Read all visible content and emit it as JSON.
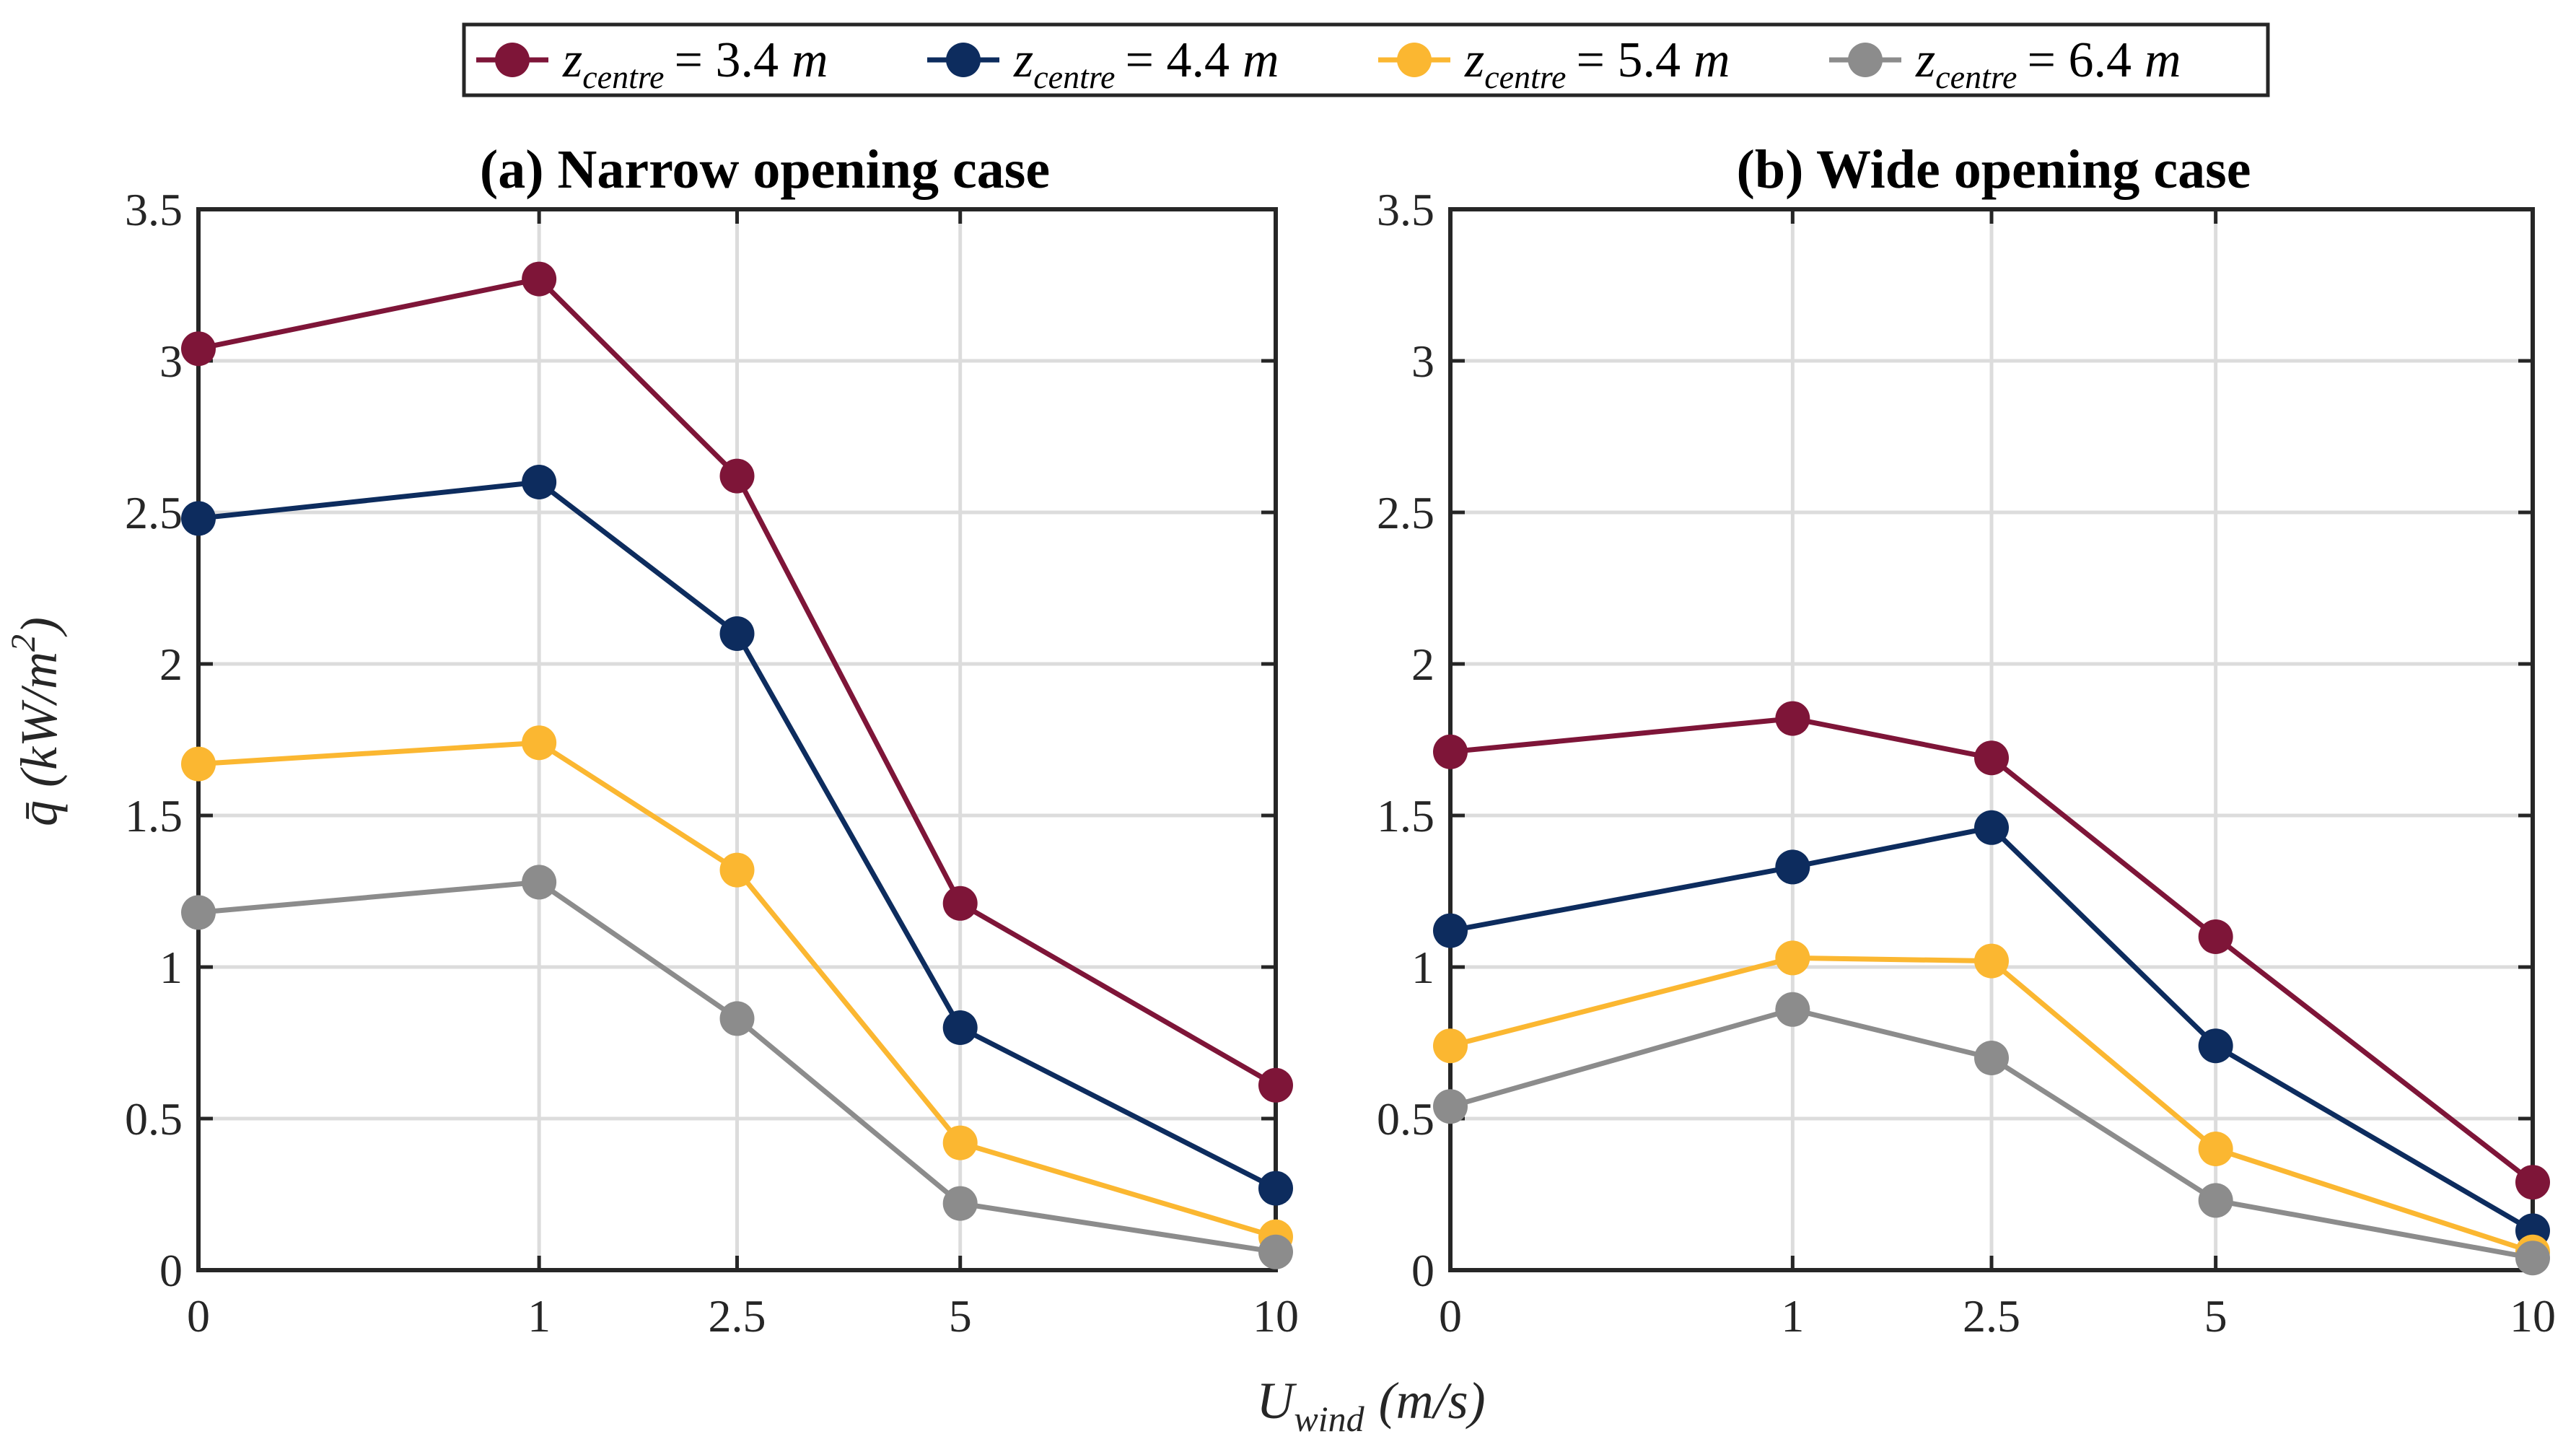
{
  "chart_data": {
    "type": "line",
    "legend": {
      "placement": "top-center",
      "entries": [
        {
          "symbol": "z",
          "subscript": "centre",
          "value_text": "= 3.4",
          "unit": "m"
        },
        {
          "symbol": "z",
          "subscript": "centre",
          "value_text": "= 4.4",
          "unit": "m"
        },
        {
          "symbol": "z",
          "subscript": "centre",
          "value_text": "= 5.4",
          "unit": "m"
        },
        {
          "symbol": "z",
          "subscript": "centre",
          "value_text": "= 6.4",
          "unit": "m"
        }
      ]
    },
    "colors": [
      "#7e1538",
      "#0d2c5e",
      "#fbb731",
      "#8c8c8c"
    ],
    "xlabel": {
      "main": "U",
      "sub": "wind",
      "unit": "(m/s)"
    },
    "ylabel": {
      "main": "q̄",
      "unit_open": "(kW/m",
      "sup": "2",
      "unit_close": ")"
    },
    "x_ticks": [
      0,
      1,
      2.5,
      5,
      10
    ],
    "x_tick_labels": [
      "0",
      "1",
      "2.5",
      "5",
      "10"
    ],
    "x_scale": "sqrt",
    "y_ticks": [
      0,
      0.5,
      1,
      1.5,
      2,
      2.5,
      3,
      3.5
    ],
    "y_tick_labels": [
      "0",
      "0.5",
      "1",
      "1.5",
      "2",
      "2.5",
      "3",
      "3.5"
    ],
    "xlim": [
      0,
      10
    ],
    "ylim": [
      0,
      3.5
    ],
    "grid": true,
    "panels": [
      {
        "title": "(a) Narrow opening case",
        "x": [
          0,
          1,
          2.5,
          5,
          10
        ],
        "series": [
          {
            "values": [
              3.04,
              3.27,
              2.62,
              1.21,
              0.61
            ]
          },
          {
            "values": [
              2.48,
              2.6,
              2.1,
              0.8,
              0.27
            ]
          },
          {
            "values": [
              1.67,
              1.74,
              1.32,
              0.42,
              0.11
            ]
          },
          {
            "values": [
              1.18,
              1.28,
              0.83,
              0.22,
              0.06
            ]
          }
        ]
      },
      {
        "title": "(b) Wide opening case",
        "x": [
          0,
          1,
          2.5,
          5,
          10
        ],
        "series": [
          {
            "values": [
              1.71,
              1.82,
              1.69,
              1.1,
              0.29
            ]
          },
          {
            "values": [
              1.12,
              1.33,
              1.46,
              0.74,
              0.13
            ]
          },
          {
            "values": [
              0.74,
              1.03,
              1.02,
              0.4,
              0.06
            ]
          },
          {
            "values": [
              0.54,
              0.86,
              0.7,
              0.23,
              0.04
            ]
          }
        ]
      }
    ]
  }
}
